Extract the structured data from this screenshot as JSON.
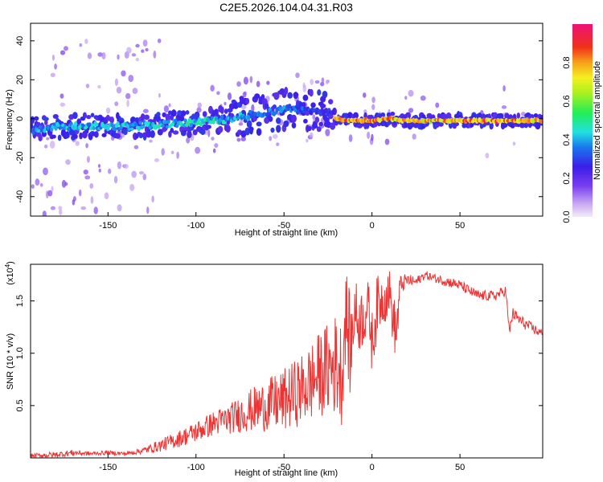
{
  "chart_data": [
    {
      "type": "heatmap",
      "title": "C2E5.2026.104.04.31.R03",
      "xlabel": "Height of straight line (km)",
      "ylabel": "Frequency (Hz)",
      "xlim": [
        -194,
        97
      ],
      "ylim": [
        -50,
        49
      ],
      "xticks": [
        -150,
        -100,
        -50,
        0,
        50
      ],
      "xtick_labels": [
        "-150",
        "-100",
        "-50",
        "0",
        "50"
      ],
      "yticks": [
        -40,
        -20,
        0,
        20,
        40
      ],
      "ytick_labels": [
        "-40",
        "-20",
        "0",
        "20",
        "40"
      ],
      "colorbar": {
        "label": "Normalized spectral amplitude",
        "range": [
          0,
          1
        ],
        "ticks": [
          0.0,
          0.2,
          0.4,
          0.6,
          0.8
        ],
        "tick_labels": [
          "0.0",
          "0.2",
          "0.4",
          "0.6",
          "0.8"
        ]
      },
      "ridge": {
        "x": [
          -194,
          -180,
          -160,
          -140,
          -120,
          -100,
          -90,
          -80,
          -70,
          -60,
          -50,
          -40,
          -30,
          -22,
          -21,
          -10,
          0,
          10,
          20,
          40,
          60,
          80,
          97
        ],
        "y": [
          -6,
          -4,
          -4,
          -4,
          -3,
          -2,
          -1,
          0,
          2,
          3,
          5,
          5,
          4,
          3,
          0,
          -1,
          -1,
          0,
          -1,
          -1,
          -1,
          -1,
          -1
        ],
        "amplitude": [
          0.4,
          0.45,
          0.45,
          0.45,
          0.45,
          0.5,
          0.5,
          0.45,
          0.4,
          0.4,
          0.4,
          0.35,
          0.3,
          0.3,
          0.95,
          0.85,
          0.9,
          0.85,
          0.8,
          0.85,
          0.9,
          0.9,
          0.8
        ]
      }
    },
    {
      "type": "line",
      "title": "",
      "xlabel": "Height of straight line (km)",
      "ylabel": "SNR (10 * v/v)",
      "y_exponent_label": "(x10",
      "y_exponent_power": "4",
      "y_exponent_close": ")",
      "xlim": [
        -194,
        97
      ],
      "ylim": [
        0,
        1.85
      ],
      "xticks": [
        -150,
        -100,
        -50,
        0,
        50
      ],
      "xtick_labels": [
        "-150",
        "-100",
        "-50",
        "0",
        "50"
      ],
      "yticks": [
        0.5,
        1.0,
        1.5
      ],
      "ytick_labels": [
        "0.5",
        "1.0",
        "1.5"
      ],
      "series": [
        {
          "name": "SNR",
          "color": "#ee3333",
          "x": [
            -194,
            -180,
            -170,
            -160,
            -150,
            -140,
            -130,
            -120,
            -110,
            -100,
            -90,
            -80,
            -70,
            -60,
            -50,
            -45,
            -40,
            -35,
            -30,
            -25,
            -20,
            -17,
            -15,
            -12,
            -10,
            -8,
            -5,
            -2,
            0,
            3,
            5,
            8,
            10,
            12,
            14,
            16,
            20,
            25,
            30,
            35,
            40,
            50,
            60,
            70,
            76,
            78,
            80,
            85,
            90,
            95,
            97
          ],
          "y": [
            0.02,
            0.03,
            0.05,
            0.04,
            0.05,
            0.04,
            0.07,
            0.12,
            0.18,
            0.25,
            0.33,
            0.38,
            0.45,
            0.5,
            0.55,
            0.6,
            0.65,
            0.72,
            0.8,
            0.85,
            0.9,
            0.8,
            1.4,
            1.0,
            1.45,
            1.3,
            1.35,
            1.45,
            1.1,
            1.45,
            1.5,
            1.55,
            1.6,
            1.3,
            1.2,
            1.65,
            1.7,
            1.68,
            1.75,
            1.72,
            1.7,
            1.65,
            1.55,
            1.55,
            1.6,
            1.2,
            1.38,
            1.3,
            1.25,
            1.2,
            1.18
          ],
          "variability": [
            0.02,
            0.03,
            0.03,
            0.02,
            0.02,
            0.02,
            0.03,
            0.06,
            0.08,
            0.1,
            0.12,
            0.15,
            0.2,
            0.25,
            0.3,
            0.32,
            0.34,
            0.38,
            0.4,
            0.45,
            0.5,
            0.5,
            0.45,
            0.5,
            0.35,
            0.3,
            0.3,
            0.25,
            0.3,
            0.3,
            0.25,
            0.25,
            0.2,
            0.25,
            0.3,
            0.1,
            0.06,
            0.05,
            0.04,
            0.04,
            0.05,
            0.05,
            0.05,
            0.05,
            0.05,
            0.06,
            0.06,
            0.06,
            0.05,
            0.05,
            0.05
          ]
        }
      ]
    }
  ]
}
